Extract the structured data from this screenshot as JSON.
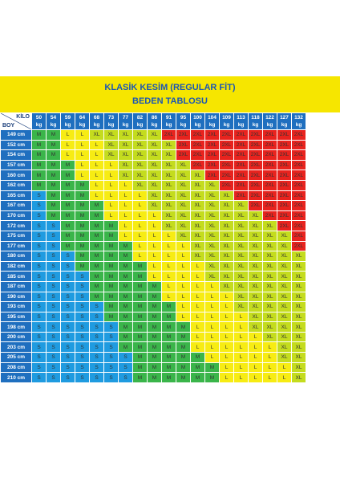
{
  "title": "KLASİK KESİM (REGULAR FİT)",
  "subtitle": "BEDEN TABLOSU",
  "corner": {
    "kilo": "KİLO",
    "boy": "BOY"
  },
  "weights": [
    "50",
    "54",
    "59",
    "64",
    "68",
    "73",
    "77",
    "82",
    "86",
    "91",
    "95",
    "100",
    "104",
    "109",
    "113",
    "118",
    "122",
    "127",
    "132"
  ],
  "unit": "kg",
  "heights": [
    "149 cm",
    "152 cm",
    "154 cm",
    "157 cm",
    "160 cm",
    "162 cm",
    "165 cm",
    "167 cm",
    "170 cm",
    "172 cm",
    "175 cm",
    "177 cm",
    "180 cm",
    "182 cm",
    "185 cm",
    "187 cm",
    "190 cm",
    "193 cm",
    "195 cm",
    "198 cm",
    "200 cm",
    "203 cm",
    "205 cm",
    "208 cm",
    "210 cm"
  ],
  "rows": [
    [
      "M",
      "M",
      "L",
      "L",
      "XL",
      "XL",
      "XL",
      "XL",
      "XL",
      "2XL",
      "2XL",
      "2XL",
      "2XL",
      "2XL",
      "2XL",
      "2XL",
      "2XL",
      "2XL",
      "2XL"
    ],
    [
      "M",
      "M",
      "L",
      "L",
      "L",
      "XL",
      "XL",
      "XL",
      "XL",
      "XL",
      "2XL",
      "2XL",
      "2XL",
      "2XL",
      "2XL",
      "2XL",
      "2XL",
      "2XL",
      "2XL"
    ],
    [
      "M",
      "M",
      "L",
      "L",
      "L",
      "XL",
      "XL",
      "XL",
      "XL",
      "XL",
      "2XL",
      "2XL",
      "2XL",
      "2XL",
      "2XL",
      "2XL",
      "2XL",
      "2XL",
      "2XL"
    ],
    [
      "M",
      "M",
      "M",
      "L",
      "L",
      "L",
      "XL",
      "XL",
      "XL",
      "XL",
      "XL",
      "2XL",
      "2XL",
      "2XL",
      "2XL",
      "2XL",
      "2XL",
      "2XL",
      "2XL"
    ],
    [
      "M",
      "M",
      "M",
      "L",
      "L",
      "L",
      "XL",
      "XL",
      "XL",
      "XL",
      "XL",
      "XL",
      "2XL",
      "2XL",
      "2XL",
      "2XL",
      "2XL",
      "2XL",
      "2XL"
    ],
    [
      "M",
      "M",
      "M",
      "M",
      "L",
      "L",
      "L",
      "XL",
      "XL",
      "XL",
      "XL",
      "XL",
      "XL",
      "2XL",
      "2XL",
      "2XL",
      "2XL",
      "2XL",
      "2XL"
    ],
    [
      "S",
      "M",
      "M",
      "M",
      "L",
      "L",
      "L",
      "L",
      "XL",
      "XL",
      "XL",
      "XL",
      "XL",
      "XL",
      "2XL",
      "2XL",
      "2XL",
      "2XL",
      "2XL"
    ],
    [
      "S",
      "M",
      "M",
      "M",
      "M",
      "L",
      "L",
      "L",
      "XL",
      "XL",
      "XL",
      "XL",
      "XL",
      "XL",
      "XL",
      "2XL",
      "2XL",
      "2XL",
      "2XL"
    ],
    [
      "S",
      "M",
      "M",
      "M",
      "M",
      "L",
      "L",
      "L",
      "L",
      "XL",
      "XL",
      "XL",
      "XL",
      "XL",
      "XL",
      "XL",
      "2XL",
      "2XL",
      "2XL"
    ],
    [
      "S",
      "S",
      "M",
      "M",
      "M",
      "M",
      "L",
      "L",
      "L",
      "XL",
      "XL",
      "XL",
      "XL",
      "XL",
      "XL",
      "XL",
      "XL",
      "2XL",
      "2XL"
    ],
    [
      "S",
      "S",
      "M",
      "M",
      "M",
      "M",
      "L",
      "L",
      "L",
      "L",
      "XL",
      "XL",
      "XL",
      "XL",
      "XL",
      "XL",
      "XL",
      "XL",
      "2XL"
    ],
    [
      "S",
      "S",
      "M",
      "M",
      "M",
      "M",
      "M",
      "L",
      "L",
      "L",
      "L",
      "XL",
      "XL",
      "XL",
      "XL",
      "XL",
      "XL",
      "XL",
      "2XL"
    ],
    [
      "S",
      "S",
      "S",
      "M",
      "M",
      "M",
      "M",
      "L",
      "L",
      "L",
      "L",
      "XL",
      "XL",
      "XL",
      "XL",
      "XL",
      "XL",
      "XL",
      "XL"
    ],
    [
      "S",
      "S",
      "S",
      "M",
      "M",
      "M",
      "M",
      "M",
      "L",
      "L",
      "L",
      "L",
      "XL",
      "XL",
      "XL",
      "XL",
      "XL",
      "XL",
      "XL"
    ],
    [
      "S",
      "S",
      "S",
      "S",
      "M",
      "M",
      "M",
      "M",
      "L",
      "L",
      "L",
      "L",
      "XL",
      "XL",
      "XL",
      "XL",
      "XL",
      "XL",
      "XL"
    ],
    [
      "S",
      "S",
      "S",
      "S",
      "M",
      "M",
      "M",
      "M",
      "M",
      "L",
      "L",
      "L",
      "L",
      "XL",
      "XL",
      "XL",
      "XL",
      "XL",
      "XL"
    ],
    [
      "S",
      "S",
      "S",
      "S",
      "M",
      "M",
      "M",
      "M",
      "M",
      "L",
      "L",
      "L",
      "L",
      "L",
      "XL",
      "XL",
      "XL",
      "XL",
      "XL"
    ],
    [
      "S",
      "S",
      "S",
      "S",
      "S",
      "M",
      "M",
      "M",
      "M",
      "M",
      "L",
      "L",
      "L",
      "L",
      "XL",
      "XL",
      "XL",
      "XL",
      "XL"
    ],
    [
      "S",
      "S",
      "S",
      "S",
      "S",
      "M",
      "M",
      "M",
      "M",
      "M",
      "L",
      "L",
      "L",
      "L",
      "L",
      "XL",
      "XL",
      "XL",
      "XL"
    ],
    [
      "S",
      "S",
      "S",
      "S",
      "S",
      "S",
      "M",
      "M",
      "M",
      "M",
      "M",
      "L",
      "L",
      "L",
      "L",
      "XL",
      "XL",
      "XL",
      "XL"
    ],
    [
      "S",
      "S",
      "S",
      "S",
      "S",
      "S",
      "M",
      "M",
      "M",
      "M",
      "M",
      "L",
      "L",
      "L",
      "L",
      "L",
      "XL",
      "XL",
      "XL"
    ],
    [
      "S",
      "S",
      "S",
      "S",
      "S",
      "S",
      "M",
      "M",
      "M",
      "M",
      "M",
      "L",
      "L",
      "L",
      "L",
      "L",
      "L",
      "XL",
      "XL"
    ],
    [
      "S",
      "S",
      "S",
      "S",
      "S",
      "S",
      "S",
      "M",
      "M",
      "M",
      "M",
      "M",
      "L",
      "L",
      "L",
      "L",
      "L",
      "XL",
      "XL"
    ],
    [
      "S",
      "S",
      "S",
      "S",
      "S",
      "S",
      "S",
      "M",
      "M",
      "M",
      "M",
      "M",
      "M",
      "L",
      "L",
      "L",
      "L",
      "L",
      "XL"
    ],
    [
      "S",
      "S",
      "S",
      "S",
      "S",
      "S",
      "S",
      "M",
      "M",
      "M",
      "M",
      "M",
      "M",
      "L",
      "L",
      "L",
      "L",
      "L",
      "XL"
    ]
  ],
  "colors": {
    "S": "#1f9be0",
    "M": "#3ab54a",
    "L": "#f7ec13",
    "XL": "#c4dc1e",
    "2XL": "#e8231e",
    "header": "#1f6fbf",
    "title_bg": "#f6e600",
    "title_text": "#1a56b5"
  }
}
